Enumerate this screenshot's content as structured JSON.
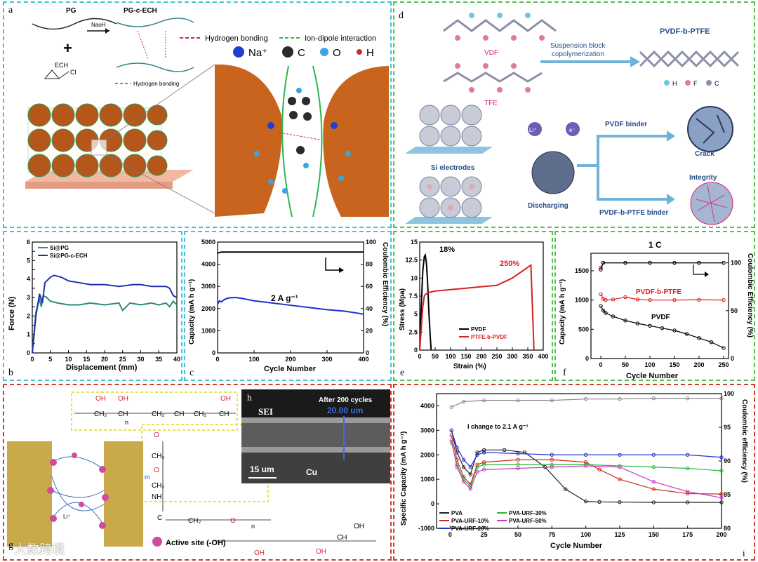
{
  "panels": {
    "a": {
      "label": "a",
      "pg": "PG",
      "pg_ech": "PG-c-ECH",
      "plus": "+",
      "naoh": "NaoH",
      "ech": "ECH",
      "cl": "Cl",
      "hb_small": "Hydrogen bonding",
      "legend_hb": "Hydrogen bonding",
      "legend_id": "Ion-dipole interaction",
      "atoms": [
        "Na⁺",
        "C",
        "O",
        "H"
      ],
      "colors": {
        "na": "#1f3fd1",
        "c": "#2b2b2b",
        "o": "#3aa5e0",
        "h": "#d0283a",
        "particle": "#c8641e"
      }
    },
    "b": {
      "label": "b",
      "xlabel": "Displacement (mm)",
      "ylabel": "Force (N)"
    },
    "c": {
      "label": "c",
      "xlabel": "Cycle Number",
      "ylabel": "Capacity (mA h g⁻¹)",
      "ylabel2": "Coulombic Efficiency (%)",
      "annotation": "2 A g⁻¹"
    },
    "d": {
      "label": "d",
      "vdf": "VDF",
      "tfe": "TFE",
      "copolymer": "PVDF-b-PTFE",
      "process_line1": "Suspension block",
      "process_line2": "copolymerization",
      "atoms": [
        "H",
        "F",
        "C"
      ],
      "si": "Si electrodes",
      "li": "Li⁺",
      "e": "e⁻",
      "discharging": "Discharging",
      "binder1": "PVDF  binder",
      "crack": "Crack",
      "integrity": "Integrity",
      "binder2": "PVDF-b-PTFE  binder"
    },
    "e": {
      "label": "e",
      "xlabel": "Strain (%)",
      "ylabel": "Stress (Mpa)",
      "ann1": "18%",
      "ann2": "250%"
    },
    "f": {
      "label": "f",
      "xlabel": "Cycle Number",
      "ylabel": "Capacity (mA h g⁻¹)",
      "ylabel2": "Coulombic Efficiency (%)",
      "title": "1 C",
      "ann1": "PVDF-b-PTFE",
      "ann2": "PVDF"
    },
    "g": {
      "label": "g",
      "li": "Li⁺",
      "active": "Active site (-OH)",
      "oh": "OH",
      "ch2": "CH₂",
      "ch": "CH",
      "o": "O",
      "nh": "NH",
      "c": "C",
      "n": "n",
      "m": "m"
    },
    "h": {
      "label": "h",
      "sei": "SEI",
      "after": "After 200 cycles",
      "scale1": "20.00 um",
      "scale2": "15 um",
      "cu": "Cu"
    },
    "i": {
      "label": "i",
      "xlabel": "Cycle Number",
      "ylabel": "Specific Capacity (mA h g⁻¹)",
      "ylabel2": "Coulombic efficiency (%)",
      "ann": "I change to 2.1 A g⁻¹"
    }
  },
  "watermark": "大数跨境",
  "chart_data": [
    {
      "id": "b",
      "type": "line",
      "xlabel": "Displacement (mm)",
      "ylabel": "Force (N)",
      "xlim": [
        0,
        40
      ],
      "ylim": [
        0,
        6
      ],
      "xticks": [
        0,
        5,
        10,
        15,
        20,
        25,
        30,
        35,
        40
      ],
      "yticks": [
        0,
        0.5,
        1,
        1.5,
        2,
        2.5,
        3,
        3.5,
        4,
        4.5,
        5,
        5.5,
        6
      ],
      "ytick_labels": [
        "0",
        "",
        "1",
        "",
        "2",
        "",
        "3",
        "",
        "4",
        "",
        "5",
        "",
        "6"
      ],
      "series": [
        {
          "name": "Si@PG",
          "color": "#2a8a7e",
          "x": [
            0,
            1,
            2,
            2.5,
            3,
            4,
            5,
            7,
            10,
            13,
            16,
            20,
            24,
            25,
            27,
            30,
            33,
            35,
            37,
            38,
            39,
            40
          ],
          "y": [
            0,
            2.2,
            2.9,
            2.5,
            3.1,
            3.0,
            2.8,
            2.7,
            2.6,
            2.6,
            2.7,
            2.6,
            2.7,
            2.3,
            2.7,
            2.6,
            2.7,
            2.6,
            2.7,
            2.5,
            2.8,
            2.6
          ]
        },
        {
          "name": "Si@PG-c-ECH",
          "color": "#1f2fa8",
          "x": [
            0,
            1,
            2,
            2.8,
            3.5,
            5,
            6,
            8,
            10,
            13,
            16,
            20,
            24,
            28,
            30,
            33,
            36,
            37,
            38,
            39,
            40
          ],
          "y": [
            0,
            2.0,
            3.2,
            2.7,
            3.8,
            4.1,
            4.2,
            4.1,
            3.9,
            3.8,
            3.7,
            3.7,
            3.6,
            3.7,
            3.7,
            3.6,
            3.6,
            3.6,
            3.5,
            3.1,
            3.0
          ]
        }
      ]
    },
    {
      "id": "c",
      "type": "line",
      "xlabel": "Cycle Number",
      "ylabel": "Capacity (mA h g⁻¹)",
      "ylabel2": "Coulombic Efficiency (%)",
      "xlim": [
        0,
        400
      ],
      "ylim": [
        0,
        5000
      ],
      "y2lim": [
        0,
        100
      ],
      "xticks": [
        0,
        100,
        200,
        300,
        400
      ],
      "yticks": [
        0,
        1000,
        2000,
        3000,
        4000,
        5000
      ],
      "y2ticks": [
        0,
        20,
        40,
        60,
        80,
        100
      ],
      "series": [
        {
          "name": "Capacity",
          "color": "#1f2fd6",
          "x": [
            0,
            5,
            10,
            20,
            30,
            50,
            70,
            100,
            150,
            200,
            250,
            300,
            350,
            400
          ],
          "y": [
            2200,
            2350,
            2300,
            2420,
            2480,
            2500,
            2450,
            2350,
            2250,
            2150,
            2050,
            1950,
            1880,
            1750
          ]
        },
        {
          "name": "Coulombic Efficiency",
          "axis": "y2",
          "color": "#000000",
          "x": [
            0,
            10,
            50,
            100,
            200,
            300,
            400
          ],
          "y": [
            90,
            91,
            91,
            91,
            91,
            91,
            91
          ]
        }
      ]
    },
    {
      "id": "e",
      "type": "line",
      "xlabel": "Strain (%)",
      "ylabel": "Stress (Mpa)",
      "xlim": [
        0,
        400
      ],
      "ylim": [
        0,
        15
      ],
      "xticks": [
        0,
        50,
        100,
        150,
        200,
        250,
        300,
        350,
        400
      ],
      "yticks": [
        0,
        2.5,
        5,
        7.5,
        10,
        12.5,
        15
      ],
      "series": [
        {
          "name": "PVDF",
          "color": "#000000",
          "x": [
            0,
            5,
            10,
            15,
            18,
            22,
            26,
            30,
            34,
            37
          ],
          "y": [
            0,
            6,
            11,
            13,
            13.2,
            12,
            9,
            5,
            2,
            0
          ]
        },
        {
          "name": "PTFE-b-PVDF",
          "color": "#d4211f",
          "x": [
            0,
            5,
            10,
            15,
            20,
            30,
            50,
            100,
            150,
            200,
            250,
            300,
            350,
            360,
            365,
            370
          ],
          "y": [
            0,
            3,
            6,
            7.5,
            7.8,
            8.0,
            8.2,
            8.4,
            8.6,
            8.8,
            9.0,
            10.0,
            11.5,
            11.8,
            6,
            0
          ]
        }
      ]
    },
    {
      "id": "f",
      "type": "scatter",
      "xlabel": "Cycle Number",
      "ylabel": "Capacity (mA h g⁻¹)",
      "ylabel2": "Coulombic Efficiency (%)",
      "title": "1 C",
      "xlim": [
        -20,
        260
      ],
      "ylim": [
        0,
        1800
      ],
      "y2lim": [
        0,
        110
      ],
      "xticks": [
        0,
        50,
        100,
        150,
        200,
        250
      ],
      "yticks": [
        0,
        500,
        1000,
        1500
      ],
      "y2ticks": [
        0,
        50,
        100
      ],
      "series": [
        {
          "name": "PVDF-b-PTFE",
          "color": "#e0191c",
          "x": [
            0,
            5,
            10,
            25,
            50,
            75,
            100,
            150,
            200,
            250
          ],
          "y": [
            1100,
            1020,
            1000,
            1010,
            1050,
            1010,
            1000,
            1000,
            1005,
            1000
          ]
        },
        {
          "name": "PVDF",
          "color": "#000000",
          "x": [
            0,
            5,
            10,
            25,
            50,
            75,
            100,
            125,
            150,
            175,
            200,
            225,
            250
          ],
          "y": [
            900,
            820,
            780,
            720,
            650,
            600,
            560,
            520,
            480,
            420,
            350,
            280,
            180
          ]
        },
        {
          "name": "CE PVDF-b-PTFE",
          "axis": "y2",
          "color": "#e0191c",
          "x": [
            0,
            5,
            50,
            100,
            150,
            200,
            250
          ],
          "y": [
            95,
            100,
            100,
            100,
            100,
            100,
            100
          ]
        },
        {
          "name": "CE PVDF",
          "axis": "y2",
          "color": "#000000",
          "x": [
            0,
            5,
            50,
            100,
            150,
            200,
            250
          ],
          "y": [
            93,
            100,
            100,
            100,
            100,
            100,
            100
          ]
        }
      ]
    },
    {
      "id": "i",
      "type": "scatter",
      "xlabel": "Cycle Number",
      "ylabel": "Specific Capacity (mA h g⁻¹)",
      "ylabel2": "Coulombic efficiency (%)",
      "xlim": [
        -10,
        200
      ],
      "ylim": [
        -1000,
        4500
      ],
      "y2lim": [
        80,
        100
      ],
      "xticks": [
        0,
        25,
        50,
        75,
        100,
        125,
        150,
        175,
        200
      ],
      "yticks": [
        -1000,
        0,
        1000,
        2000,
        3000,
        4000
      ],
      "y2ticks": [
        80,
        85,
        90,
        95,
        100
      ],
      "series": [
        {
          "name": "PVA",
          "color": "#222222",
          "x": [
            1,
            5,
            10,
            15,
            20,
            25,
            40,
            55,
            70,
            85,
            100,
            110,
            125,
            150,
            175,
            200
          ],
          "y": [
            3000,
            2100,
            1500,
            1200,
            2100,
            2200,
            2200,
            2100,
            1500,
            600,
            100,
            80,
            70,
            60,
            60,
            60
          ]
        },
        {
          "name": "PVA-URF-10%",
          "color": "#d12a1f",
          "x": [
            1,
            5,
            10,
            15,
            20,
            25,
            50,
            75,
            100,
            110,
            125,
            150,
            175,
            200
          ],
          "y": [
            2800,
            1800,
            1100,
            800,
            1600,
            1700,
            1800,
            1800,
            1700,
            1400,
            1000,
            600,
            420,
            400
          ]
        },
        {
          "name": "PVA-URF-20%",
          "color": "#2431c8",
          "x": [
            1,
            5,
            10,
            15,
            20,
            25,
            50,
            75,
            100,
            125,
            150,
            175,
            200
          ],
          "y": [
            3000,
            2300,
            1800,
            1500,
            2000,
            2100,
            2050,
            2000,
            2000,
            2000,
            2000,
            2000,
            1900
          ]
        },
        {
          "name": "PVA-URF-30%",
          "color": "#27b83a",
          "x": [
            1,
            5,
            10,
            15,
            20,
            25,
            50,
            75,
            100,
            125,
            150,
            175,
            200
          ],
          "y": [
            2500,
            1600,
            1000,
            700,
            1500,
            1600,
            1600,
            1600,
            1600,
            1550,
            1500,
            1450,
            1350
          ]
        },
        {
          "name": "PVA-URF-50%",
          "color": "#c83bc4",
          "x": [
            1,
            5,
            10,
            15,
            20,
            25,
            50,
            75,
            100,
            125,
            150,
            175,
            200
          ],
          "y": [
            2600,
            1500,
            900,
            600,
            1300,
            1400,
            1450,
            1500,
            1550,
            1500,
            900,
            500,
            250
          ]
        },
        {
          "name": "CE",
          "axis": "y2",
          "color": "#8a8a8a",
          "x": [
            1,
            10,
            25,
            50,
            75,
            100,
            125,
            150,
            175,
            200
          ],
          "y": [
            98,
            98.8,
            99,
            99,
            99,
            99.2,
            99.2,
            99.3,
            99.3,
            99.3
          ]
        }
      ]
    }
  ]
}
